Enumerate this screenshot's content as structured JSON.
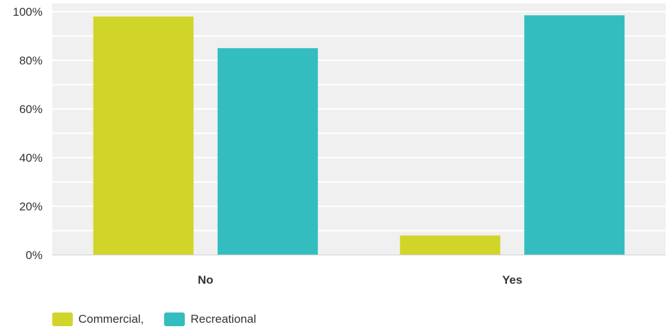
{
  "chart_data": {
    "type": "bar",
    "categories": [
      "No",
      "Yes"
    ],
    "series": [
      {
        "name": "Commercial,",
        "color": "#d1d52a",
        "values": [
          98,
          8
        ]
      },
      {
        "name": "Recreational",
        "color": "#33bdbf",
        "values": [
          85,
          98.5
        ]
      }
    ],
    "ylim": [
      0,
      100
    ],
    "yticks": [
      "0%",
      "20%",
      "40%",
      "60%",
      "80%",
      "100%"
    ],
    "ytick_values": [
      0,
      20,
      40,
      60,
      80,
      100
    ],
    "grid": true,
    "legend_position": "bottom-left",
    "plot_background": "#f0f0f0"
  }
}
